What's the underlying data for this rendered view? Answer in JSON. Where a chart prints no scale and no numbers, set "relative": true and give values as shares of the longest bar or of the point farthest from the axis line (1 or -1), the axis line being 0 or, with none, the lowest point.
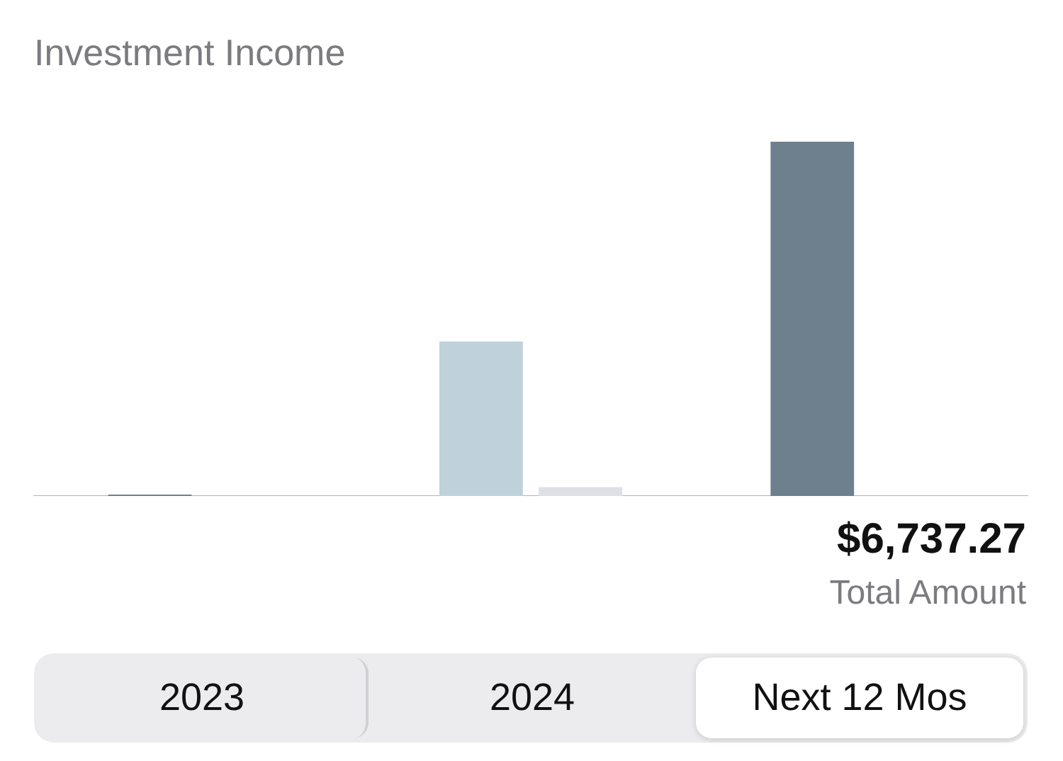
{
  "chart_data": {
    "type": "bar",
    "title": "Investment Income",
    "relative": true,
    "categories": [
      "2023",
      "2024",
      "Next 12 Mos"
    ],
    "series": [
      {
        "colors": [
          "#6e7f8d",
          "#bfd1da",
          "#6e7f8d"
        ],
        "values": [
          0.004,
          0.436,
          1
        ]
      },
      {
        "color": "#dde0e5",
        "values": [
          null,
          0.025,
          null
        ]
      }
    ],
    "grid": false,
    "legend": false,
    "annotations": [
      "$6,737.27",
      "Total Amount"
    ]
  }
}
